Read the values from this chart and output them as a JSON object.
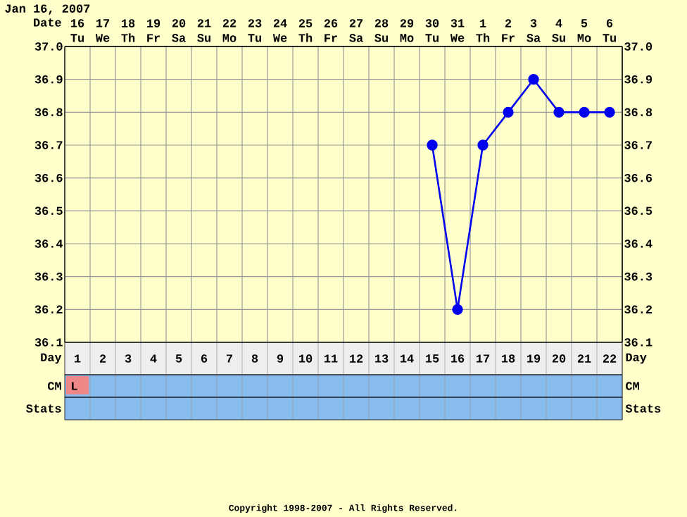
{
  "chart_data": {
    "type": "line",
    "title": "Jan 16, 2007",
    "xlabel": "Day",
    "x2label": "Date",
    "categories": [
      "1",
      "2",
      "3",
      "4",
      "5",
      "6",
      "7",
      "8",
      "9",
      "10",
      "11",
      "12",
      "13",
      "14",
      "15",
      "16",
      "17",
      "18",
      "19",
      "20",
      "21",
      "22"
    ],
    "series": [
      {
        "color": "#0000ee",
        "values": [
          null,
          null,
          null,
          null,
          null,
          null,
          null,
          null,
          null,
          null,
          null,
          null,
          null,
          null,
          36.7,
          36.2,
          36.7,
          36.8,
          36.9,
          36.8,
          36.8,
          36.8
        ]
      }
    ],
    "marker": "circle",
    "line_style": "solid",
    "ylim": [
      36.1,
      37.0
    ],
    "yticks": [
      36.1,
      36.2,
      36.3,
      36.4,
      36.5,
      36.6,
      36.7,
      36.8,
      36.9,
      {
        "value": 37.0,
        "label": "37.0"
      }
    ],
    "y2lim": [
      36.1,
      37.0
    ],
    "y2ticks": [
      36.1,
      36.2,
      36.3,
      36.4,
      36.5,
      36.6,
      36.7,
      36.8,
      36.9,
      {
        "value": 37.0,
        "label": "37.0"
      }
    ],
    "grid": true,
    "annotations": [
      "16 Tu",
      "17 We",
      "18 Th",
      "19 Fr",
      "20 Sa",
      "21 Su",
      "22 Mo",
      "23 Tu",
      "24 We",
      "25 Th",
      "26 Fr",
      "27 Sa",
      "28 Su",
      "29 Mo",
      "30 Tu",
      "31 We",
      "1 Th",
      "2 Fr",
      "3 Sa",
      "4 Su",
      "5 Mo",
      "6 Tu",
      "CM",
      "Stats",
      "L",
      "Copyright 1998-2007 - All Rights Reserved."
    ]
  }
}
